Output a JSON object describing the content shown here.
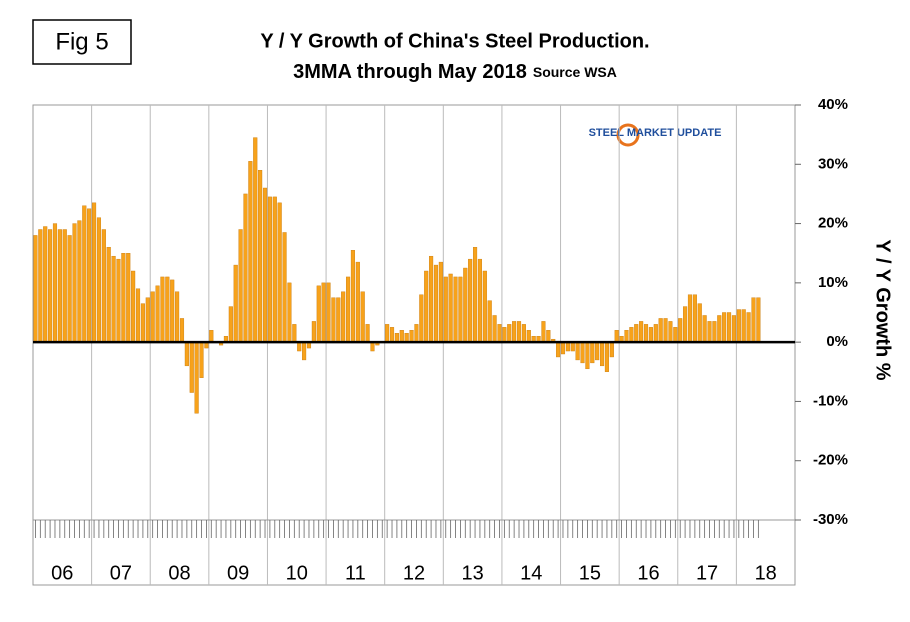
{
  "chart_data": {
    "type": "bar",
    "figure_label": "Fig 5",
    "title": "Y / Y Growth of China's Steel Production.",
    "subtitle": "3MMA through May 2018",
    "source": "Source WSA",
    "logo": "STEEL MARKET UPDATE",
    "y_axis_label": "Y / Y Growth %",
    "color": "#f7a21b",
    "x_groups": [
      "06",
      "07",
      "08",
      "09",
      "10",
      "11",
      "12",
      "13",
      "14",
      "15",
      "16",
      "17",
      "18"
    ],
    "categories": [
      null,
      null,
      null,
      null,
      null,
      null,
      null,
      null,
      null,
      null,
      null,
      null,
      null,
      null,
      null,
      null,
      null,
      null,
      null,
      null,
      null,
      null,
      null,
      null,
      null,
      null,
      null,
      null,
      null,
      null,
      null,
      null,
      null,
      null,
      null,
      null,
      null,
      null,
      null,
      null,
      null,
      null,
      null,
      null,
      null,
      null,
      null,
      null,
      null,
      null,
      null,
      null,
      null,
      null,
      null,
      null,
      null,
      null,
      null,
      null,
      null,
      null,
      null,
      null,
      null,
      null,
      null,
      null,
      null,
      null,
      null,
      null,
      null,
      null,
      null,
      null,
      null,
      null,
      null,
      null,
      null,
      null,
      null,
      null,
      null,
      null,
      null,
      null,
      null,
      null,
      null,
      null,
      null,
      null,
      null,
      null,
      null,
      null,
      null,
      null,
      null,
      null,
      null,
      null,
      null,
      null,
      null,
      null,
      null,
      null,
      null,
      null,
      null,
      null,
      null,
      null,
      null,
      null,
      null,
      null,
      null,
      null,
      null,
      null,
      null,
      null,
      null,
      null,
      null,
      null,
      null,
      null,
      null,
      null,
      null,
      null,
      null,
      null,
      null,
      null,
      null,
      null,
      null,
      null,
      null,
      null,
      null,
      null,
      null
    ],
    "values": [
      18,
      19,
      19.5,
      19,
      20,
      19,
      19,
      18,
      20,
      20.5,
      23,
      22.5,
      23.5,
      21,
      19,
      16,
      14.5,
      14,
      15,
      15,
      12,
      9,
      6.5,
      7.5,
      8.5,
      9.5,
      11,
      11,
      10.5,
      8.5,
      4,
      -4,
      -8.5,
      -12,
      -6,
      -1,
      2,
      0,
      -0.5,
      1,
      6,
      13,
      19,
      25,
      30.5,
      34.5,
      29,
      26,
      24.5,
      24.5,
      23.5,
      18.5,
      10,
      3,
      -1.5,
      -3,
      -1,
      3.5,
      9.5,
      10,
      10,
      7.5,
      7.5,
      8.5,
      11,
      15.5,
      13.5,
      8.5,
      3,
      -1.5,
      -0.5,
      0,
      3,
      2.5,
      1.5,
      2,
      1.5,
      2,
      3,
      8,
      12,
      14.5,
      13,
      13.5,
      11,
      11.5,
      11,
      11,
      12.5,
      14,
      16,
      14,
      12,
      7,
      4.5,
      3,
      2.5,
      3,
      3.5,
      3.5,
      3,
      2,
      1,
      1,
      3.5,
      2,
      0.5,
      -2.5,
      -2,
      -1.5,
      -1.5,
      -3,
      -3.5,
      -4.5,
      -3.5,
      -3,
      -4,
      -5,
      -2.5,
      2,
      1,
      2,
      2.5,
      3,
      3.5,
      3,
      2.5,
      3,
      4,
      4,
      3.5,
      2.5,
      4,
      6,
      8,
      8,
      6.5,
      4.5,
      3.5,
      3.5,
      4.5,
      5,
      5,
      4.5,
      5.5,
      5.5,
      5,
      7.5,
      7.5
    ],
    "ylim": [
      -30,
      40
    ],
    "yticks": [
      {
        "value": -30,
        "label": "-30%"
      },
      {
        "value": -20,
        "label": "-20%"
      },
      {
        "value": -10,
        "label": "-10%"
      },
      {
        "value": 0,
        "label": "0%"
      },
      {
        "value": 10,
        "label": "10%"
      },
      {
        "value": 20,
        "label": "20%"
      },
      {
        "value": 30,
        "label": "30%"
      },
      {
        "value": 40,
        "label": "40%"
      }
    ]
  }
}
